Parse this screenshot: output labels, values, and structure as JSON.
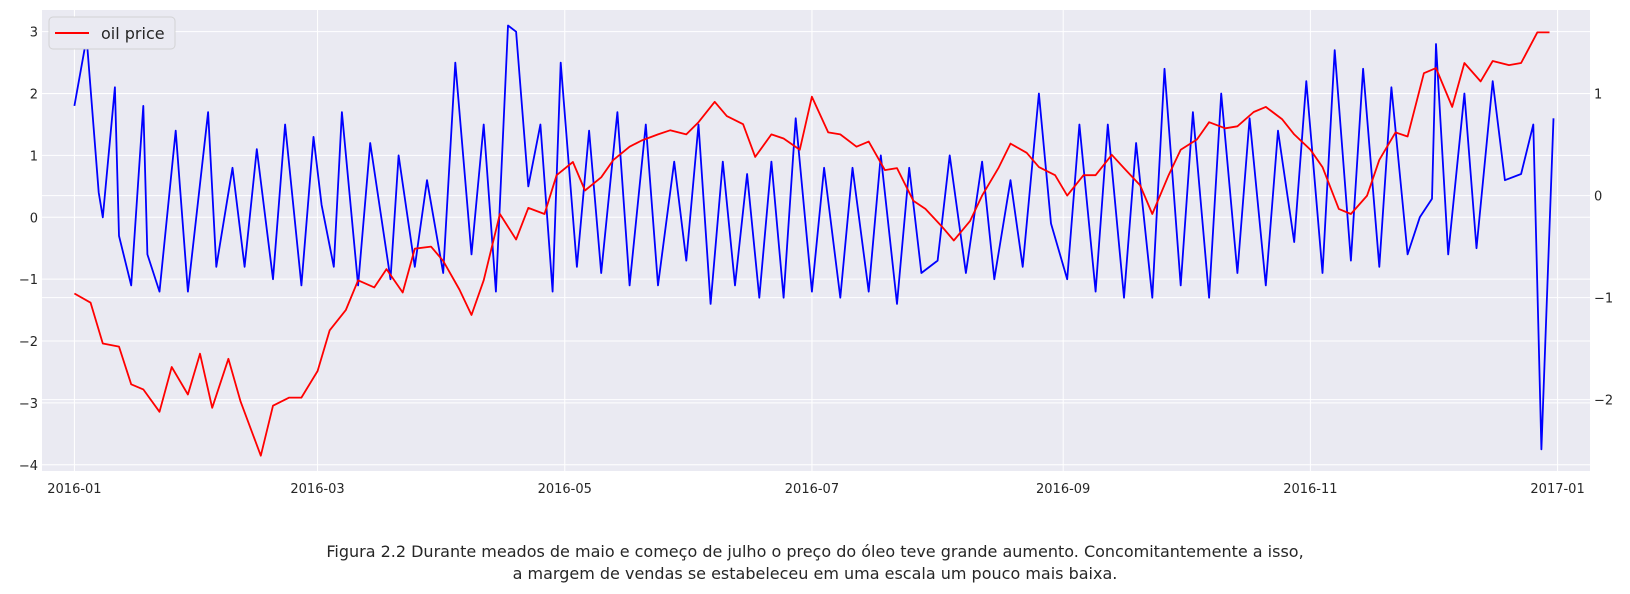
{
  "chart_data": {
    "type": "line",
    "title": "",
    "xlabel": "",
    "ylabel": "",
    "x_range": [
      "2015-12-24",
      "2017-01-09"
    ],
    "x_ticks": [
      "2016-01",
      "2016-03",
      "2016-05",
      "2016-07",
      "2016-09",
      "2016-11",
      "2017-01"
    ],
    "ylim_left": [
      -4.1,
      3.35
    ],
    "yticks_left": [
      -4,
      -3,
      -2,
      -1,
      0,
      1,
      2,
      3
    ],
    "ylim_right": [
      -2.7,
      1.82
    ],
    "yticks_right": [
      -2,
      -1,
      0,
      1
    ],
    "grid": true,
    "legend": {
      "position": "top-left",
      "entries": [
        "oil price"
      ]
    },
    "series": [
      {
        "name": "",
        "axis": "left",
        "color": "#0000ff",
        "x": [
          "2016-01-01",
          "2016-01-04",
          "2016-01-07",
          "2016-01-08",
          "2016-01-11",
          "2016-01-12",
          "2016-01-15",
          "2016-01-18",
          "2016-01-19",
          "2016-01-22",
          "2016-01-26",
          "2016-01-29",
          "2016-02-03",
          "2016-02-05",
          "2016-02-09",
          "2016-02-12",
          "2016-02-15",
          "2016-02-19",
          "2016-02-22",
          "2016-02-26",
          "2016-02-29",
          "2016-03-02",
          "2016-03-05",
          "2016-03-07",
          "2016-03-11",
          "2016-03-14",
          "2016-03-19",
          "2016-03-21",
          "2016-03-25",
          "2016-03-28",
          "2016-04-01",
          "2016-04-04",
          "2016-04-08",
          "2016-04-11",
          "2016-04-14",
          "2016-04-17",
          "2016-04-19",
          "2016-04-22",
          "2016-04-25",
          "2016-04-28",
          "2016-04-30",
          "2016-05-04",
          "2016-05-07",
          "2016-05-10",
          "2016-05-14",
          "2016-05-17",
          "2016-05-21",
          "2016-05-24",
          "2016-05-28",
          "2016-05-31",
          "2016-06-03",
          "2016-06-06",
          "2016-06-09",
          "2016-06-12",
          "2016-06-15",
          "2016-06-18",
          "2016-06-21",
          "2016-06-24",
          "2016-06-27",
          "2016-07-01",
          "2016-07-04",
          "2016-07-08",
          "2016-07-11",
          "2016-07-15",
          "2016-07-18",
          "2016-07-22",
          "2016-07-25",
          "2016-07-28",
          "2016-08-01",
          "2016-08-04",
          "2016-08-08",
          "2016-08-12",
          "2016-08-15",
          "2016-08-19",
          "2016-08-22",
          "2016-08-26",
          "2016-08-29",
          "2016-09-02",
          "2016-09-05",
          "2016-09-09",
          "2016-09-12",
          "2016-09-16",
          "2016-09-19",
          "2016-09-23",
          "2016-09-26",
          "2016-09-30",
          "2016-10-03",
          "2016-10-07",
          "2016-10-10",
          "2016-10-14",
          "2016-10-17",
          "2016-10-21",
          "2016-10-24",
          "2016-10-28",
          "2016-10-31",
          "2016-11-04",
          "2016-11-07",
          "2016-11-11",
          "2016-11-14",
          "2016-11-18",
          "2016-11-21",
          "2016-11-25",
          "2016-11-28",
          "2016-12-01",
          "2016-12-02",
          "2016-12-05",
          "2016-12-09",
          "2016-12-12",
          "2016-12-16",
          "2016-12-19",
          "2016-12-23",
          "2016-12-26",
          "2016-12-28",
          "2016-12-31"
        ],
        "values": [
          1.8,
          2.9,
          0.4,
          0.0,
          2.1,
          -0.3,
          -1.1,
          1.8,
          -0.6,
          -1.2,
          1.4,
          -1.2,
          1.7,
          -0.8,
          0.8,
          -0.8,
          1.1,
          -1.0,
          1.5,
          -1.1,
          1.3,
          0.2,
          -0.8,
          1.7,
          -1.1,
          1.2,
          -1.0,
          1.0,
          -0.8,
          0.6,
          -0.9,
          2.5,
          -0.6,
          1.5,
          -1.2,
          3.1,
          3.0,
          0.5,
          1.5,
          -1.2,
          2.5,
          -0.8,
          1.4,
          -0.9,
          1.7,
          -1.1,
          1.5,
          -1.1,
          0.9,
          -0.7,
          1.5,
          -1.4,
          0.9,
          -1.1,
          0.7,
          -1.3,
          0.9,
          -1.3,
          1.6,
          -1.2,
          0.8,
          -1.3,
          0.8,
          -1.2,
          1.0,
          -1.4,
          0.8,
          -0.9,
          -0.7,
          1.0,
          -0.9,
          0.9,
          -1.0,
          0.6,
          -0.8,
          2.0,
          -0.1,
          -1.0,
          1.5,
          -1.2,
          1.5,
          -1.3,
          1.2,
          -1.3,
          2.4,
          -1.1,
          1.7,
          -1.3,
          2.0,
          -0.9,
          1.6,
          -1.1,
          1.4,
          -0.4,
          2.2,
          -0.9,
          2.7,
          -0.7,
          2.4,
          -0.8,
          2.1,
          -0.6,
          0.0,
          0.3,
          2.8,
          -0.6,
          2.0,
          -0.5,
          2.2,
          0.6,
          0.7,
          1.5,
          -3.75,
          1.6
        ]
      },
      {
        "name": "oil price",
        "axis": "right",
        "color": "#ff0000",
        "x": [
          "2016-01-01",
          "2016-01-05",
          "2016-01-08",
          "2016-01-12",
          "2016-01-15",
          "2016-01-18",
          "2016-01-22",
          "2016-01-25",
          "2016-01-29",
          "2016-02-01",
          "2016-02-04",
          "2016-02-08",
          "2016-02-11",
          "2016-02-16",
          "2016-02-19",
          "2016-02-23",
          "2016-02-26",
          "2016-03-01",
          "2016-03-04",
          "2016-03-08",
          "2016-03-11",
          "2016-03-15",
          "2016-03-18",
          "2016-03-22",
          "2016-03-25",
          "2016-03-29",
          "2016-04-01",
          "2016-04-05",
          "2016-04-08",
          "2016-04-11",
          "2016-04-15",
          "2016-04-19",
          "2016-04-22",
          "2016-04-26",
          "2016-04-29",
          "2016-05-03",
          "2016-05-06",
          "2016-05-10",
          "2016-05-13",
          "2016-05-17",
          "2016-05-20",
          "2016-05-24",
          "2016-05-27",
          "2016-05-31",
          "2016-06-03",
          "2016-06-07",
          "2016-06-10",
          "2016-06-14",
          "2016-06-17",
          "2016-06-21",
          "2016-06-24",
          "2016-06-28",
          "2016-07-01",
          "2016-07-05",
          "2016-07-08",
          "2016-07-12",
          "2016-07-15",
          "2016-07-19",
          "2016-07-22",
          "2016-07-26",
          "2016-07-29",
          "2016-08-02",
          "2016-08-05",
          "2016-08-09",
          "2016-08-12",
          "2016-08-16",
          "2016-08-19",
          "2016-08-23",
          "2016-08-26",
          "2016-08-30",
          "2016-09-02",
          "2016-09-06",
          "2016-09-09",
          "2016-09-13",
          "2016-09-16",
          "2016-09-20",
          "2016-09-23",
          "2016-09-27",
          "2016-09-30",
          "2016-10-04",
          "2016-10-07",
          "2016-10-11",
          "2016-10-14",
          "2016-10-18",
          "2016-10-21",
          "2016-10-25",
          "2016-10-28",
          "2016-11-01",
          "2016-11-04",
          "2016-11-08",
          "2016-11-11",
          "2016-11-15",
          "2016-11-18",
          "2016-11-22",
          "2016-11-25",
          "2016-11-29",
          "2016-12-02",
          "2016-12-06",
          "2016-12-09",
          "2016-12-13",
          "2016-12-16",
          "2016-12-20",
          "2016-12-23",
          "2016-12-27",
          "2016-12-30"
        ],
        "values": [
          -0.96,
          -1.05,
          -1.45,
          -1.48,
          -1.85,
          -1.9,
          -2.12,
          -1.68,
          -1.95,
          -1.55,
          -2.08,
          -1.6,
          -2.02,
          -2.55,
          -2.06,
          -1.98,
          -1.98,
          -1.72,
          -1.32,
          -1.12,
          -0.83,
          -0.9,
          -0.72,
          -0.95,
          -0.52,
          -0.5,
          -0.64,
          -0.92,
          -1.17,
          -0.83,
          -0.18,
          -0.43,
          -0.12,
          -0.18,
          0.2,
          0.33,
          0.05,
          0.18,
          0.35,
          0.48,
          0.54,
          0.6,
          0.64,
          0.6,
          0.72,
          0.92,
          0.78,
          0.7,
          0.38,
          0.6,
          0.56,
          0.45,
          0.97,
          0.62,
          0.6,
          0.48,
          0.53,
          0.25,
          0.27,
          -0.05,
          -0.13,
          -0.3,
          -0.44,
          -0.25,
          0.0,
          0.27,
          0.51,
          0.42,
          0.28,
          0.2,
          0.0,
          0.2,
          0.2,
          0.4,
          0.27,
          0.1,
          -0.18,
          0.2,
          0.45,
          0.55,
          0.72,
          0.66,
          0.68,
          0.82,
          0.87,
          0.75,
          0.6,
          0.45,
          0.28,
          -0.13,
          -0.18,
          0.0,
          0.35,
          0.62,
          0.58,
          1.2,
          1.25,
          0.87,
          1.3,
          1.12,
          1.32,
          1.28,
          1.3,
          1.6,
          1.6
        ]
      }
    ]
  },
  "caption": {
    "line1": "Figura 2.2  Durante meados de maio e começo de julho o preço do óleo teve grande aumento. Concomitantemente a isso,",
    "line2": "a margem de vendas se estabeleceu em uma escala um pouco mais baixa."
  }
}
